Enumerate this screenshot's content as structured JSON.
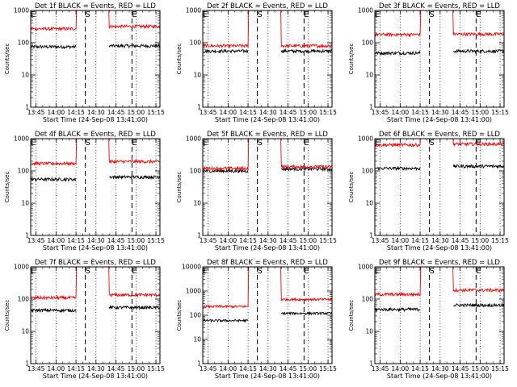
{
  "chart_data": [
    {
      "type": "line",
      "title": "Det 1f BLACK = Events, RED = LLD",
      "xlabel": "Start Time (24-Sep-08 13:41:00)",
      "ylabel": "Counts/sec",
      "xticks": [
        "13:45",
        "14:00",
        "14:15",
        "14:30",
        "14:45",
        "15:00",
        "15:15"
      ],
      "yscale": "log",
      "ylim": [
        1,
        1000
      ],
      "ytick_labels": [
        "1",
        "10",
        "100",
        "1000"
      ],
      "markers": [
        {
          "label": "E",
          "time": "13:41"
        },
        {
          "label": "S",
          "time": "14:22"
        },
        {
          "label": "E",
          "time": "14:57"
        }
      ],
      "series": [
        {
          "color": "#000000",
          "segments": [
            {
              "start": "13:41",
              "end": "14:15",
              "level": 75
            },
            {
              "start": "14:40",
              "end": "15:18",
              "level": 80
            }
          ]
        },
        {
          "color": "#ff0000",
          "segments": [
            {
              "start": "13:41",
              "end": "14:15",
              "level": 270
            },
            {
              "start": "14:40",
              "end": "15:18",
              "level": 320
            }
          ]
        }
      ]
    },
    {
      "type": "line",
      "title": "Det 2f BLACK = Events, RED = LLD",
      "xlabel": "Start Time (24-Sep-08 13:41:00)",
      "ylabel": "Counts/sec",
      "xticks": [
        "13:45",
        "14:00",
        "14:15",
        "14:30",
        "14:45",
        "15:00",
        "15:15"
      ],
      "yscale": "log",
      "ylim": [
        1,
        1000
      ],
      "ytick_labels": [
        "1",
        "10",
        "100",
        "1000"
      ],
      "markers": [
        {
          "label": "E",
          "time": "13:41"
        },
        {
          "label": "S",
          "time": "14:22"
        },
        {
          "label": "E",
          "time": "14:57"
        }
      ],
      "series": [
        {
          "color": "#000000",
          "segments": [
            {
              "start": "13:41",
              "end": "14:15",
              "level": 55
            },
            {
              "start": "14:40",
              "end": "15:18",
              "level": 55
            }
          ]
        },
        {
          "color": "#ff0000",
          "segments": [
            {
              "start": "13:41",
              "end": "14:15",
              "level": 80
            },
            {
              "start": "14:40",
              "end": "15:18",
              "level": 80
            }
          ]
        }
      ]
    },
    {
      "type": "line",
      "title": "Det 3f BLACK = Events, RED = LLD",
      "xlabel": "Start Time (24-Sep-08 13:41:00)",
      "ylabel": "Counts/sec",
      "xticks": [
        "13:45",
        "14:00",
        "14:15",
        "14:30",
        "14:45",
        "15:00",
        "15:15"
      ],
      "yscale": "log",
      "ylim": [
        1,
        1000
      ],
      "ytick_labels": [
        "1",
        "10",
        "100",
        "1000"
      ],
      "markers": [
        {
          "label": "E",
          "time": "13:41"
        },
        {
          "label": "S",
          "time": "14:22"
        },
        {
          "label": "E",
          "time": "14:57"
        }
      ],
      "series": [
        {
          "color": "#000000",
          "segments": [
            {
              "start": "13:41",
              "end": "14:15",
              "level": 48
            },
            {
              "start": "14:40",
              "end": "15:18",
              "level": 55
            }
          ]
        },
        {
          "color": "#ff0000",
          "segments": [
            {
              "start": "13:41",
              "end": "14:15",
              "level": 180
            },
            {
              "start": "14:40",
              "end": "15:18",
              "level": 185
            }
          ]
        }
      ]
    },
    {
      "type": "line",
      "title": "Det 4f BLACK = Events, RED = LLD",
      "xlabel": "Start Time (24-Sep-08 13:41:00)",
      "ylabel": "Counts/sec",
      "xticks": [
        "13:45",
        "14:00",
        "14:15",
        "14:30",
        "14:45",
        "15:00",
        "15:15"
      ],
      "yscale": "log",
      "ylim": [
        1,
        1000
      ],
      "ytick_labels": [
        "1",
        "10",
        "100",
        "1000"
      ],
      "markers": [
        {
          "label": "E",
          "time": "13:41"
        },
        {
          "label": "S",
          "time": "14:22"
        },
        {
          "label": "E",
          "time": "14:57"
        }
      ],
      "series": [
        {
          "color": "#000000",
          "segments": [
            {
              "start": "13:41",
              "end": "14:15",
              "level": 55
            },
            {
              "start": "14:40",
              "end": "15:18",
              "level": 65
            }
          ]
        },
        {
          "color": "#ff0000",
          "segments": [
            {
              "start": "13:41",
              "end": "14:15",
              "level": 170
            },
            {
              "start": "14:40",
              "end": "15:18",
              "level": 195
            }
          ]
        }
      ]
    },
    {
      "type": "line",
      "title": "Det 5f BLACK = Events, RED = LLD",
      "xlabel": "Start Time (24-Sep-08 13:41:00)",
      "ylabel": "Counts/sec",
      "xticks": [
        "13:45",
        "14:00",
        "14:15",
        "14:30",
        "14:45",
        "15:00",
        "15:15"
      ],
      "yscale": "log",
      "ylim": [
        1,
        1000
      ],
      "ytick_labels": [
        "1",
        "10",
        "100",
        "1000"
      ],
      "markers": [
        {
          "label": "E",
          "time": "13:41"
        },
        {
          "label": "S",
          "time": "14:22"
        },
        {
          "label": "E",
          "time": "14:57"
        }
      ],
      "series": [
        {
          "color": "#000000",
          "segments": [
            {
              "start": "13:41",
              "end": "14:15",
              "level": 100
            },
            {
              "start": "14:40",
              "end": "15:18",
              "level": 115
            }
          ]
        },
        {
          "color": "#ff0000",
          "segments": [
            {
              "start": "13:41",
              "end": "14:15",
              "level": 120
            },
            {
              "start": "14:40",
              "end": "15:18",
              "level": 135
            }
          ]
        }
      ]
    },
    {
      "type": "line",
      "title": "Det 6f BLACK = Events, RED = LLD",
      "xlabel": "Start Time (24-Sep-08 13:41:00)",
      "ylabel": "Counts/sec",
      "xticks": [
        "13:45",
        "14:00",
        "14:15",
        "14:30",
        "14:45",
        "15:00",
        "15:15"
      ],
      "yscale": "log",
      "ylim": [
        1,
        1000
      ],
      "ytick_labels": [
        "1",
        "10",
        "100",
        "1000"
      ],
      "markers": [
        {
          "label": "E",
          "time": "13:41"
        },
        {
          "label": "S",
          "time": "14:22"
        },
        {
          "label": "E",
          "time": "14:57"
        }
      ],
      "series": [
        {
          "color": "#000000",
          "segments": [
            {
              "start": "13:41",
              "end": "14:15",
              "level": 120
            },
            {
              "start": "14:40",
              "end": "15:18",
              "level": 140
            }
          ]
        },
        {
          "color": "#ff0000",
          "segments": [
            {
              "start": "13:41",
              "end": "14:15",
              "level": 640
            },
            {
              "start": "14:40",
              "end": "15:18",
              "level": 680
            }
          ]
        }
      ]
    },
    {
      "type": "line",
      "title": "Det 7f BLACK = Events, RED = LLD",
      "xlabel": "Start Time (24-Sep-08 13:41:00)",
      "ylabel": "Counts/sec",
      "xticks": [
        "13:45",
        "14:00",
        "14:15",
        "14:30",
        "14:45",
        "15:00",
        "15:15"
      ],
      "yscale": "log",
      "ylim": [
        1,
        1000
      ],
      "ytick_labels": [
        "1",
        "10",
        "100",
        "1000"
      ],
      "markers": [
        {
          "label": "E",
          "time": "13:41"
        },
        {
          "label": "S",
          "time": "14:22"
        },
        {
          "label": "E",
          "time": "14:57"
        }
      ],
      "series": [
        {
          "color": "#000000",
          "segments": [
            {
              "start": "13:41",
              "end": "14:15",
              "level": 45
            },
            {
              "start": "14:40",
              "end": "15:18",
              "level": 55
            }
          ]
        },
        {
          "color": "#ff0000",
          "segments": [
            {
              "start": "13:41",
              "end": "14:15",
              "level": 110
            },
            {
              "start": "14:40",
              "end": "15:18",
              "level": 135
            }
          ]
        }
      ]
    },
    {
      "type": "line",
      "title": "Det 8f BLACK = Events, RED = LLD",
      "xlabel": "Start Time (24-Sep-08 13:41:00)",
      "ylabel": "Counts/sec",
      "xticks": [
        "13:45",
        "14:00",
        "14:15",
        "14:30",
        "14:45",
        "15:00",
        "15:15"
      ],
      "yscale": "log",
      "ylim": [
        1,
        10000
      ],
      "ytick_labels": [
        "1",
        "10",
        "100",
        "1000",
        "10000"
      ],
      "markers": [
        {
          "label": "E",
          "time": "13:41"
        },
        {
          "label": "S",
          "time": "14:22"
        },
        {
          "label": "E",
          "time": "14:57"
        }
      ],
      "series": [
        {
          "color": "#000000",
          "segments": [
            {
              "start": "13:41",
              "end": "14:15",
              "level": 60
            },
            {
              "start": "14:40",
              "end": "15:18",
              "level": 120
            }
          ]
        },
        {
          "color": "#ff0000",
          "segments": [
            {
              "start": "13:41",
              "end": "14:15",
              "level": 230
            },
            {
              "start": "14:40",
              "end": "15:18",
              "level": 450
            }
          ]
        }
      ]
    },
    {
      "type": "line",
      "title": "Det 9f BLACK = Events, RED = LLD",
      "xlabel": "Start Time (24-Sep-08 13:41:00)",
      "ylabel": "Counts/sec",
      "xticks": [
        "13:45",
        "14:00",
        "14:15",
        "14:30",
        "14:45",
        "15:00",
        "15:15"
      ],
      "yscale": "log",
      "ylim": [
        1,
        1000
      ],
      "ytick_labels": [
        "1",
        "10",
        "100",
        "1000"
      ],
      "markers": [
        {
          "label": "E",
          "time": "13:41"
        },
        {
          "label": "S",
          "time": "14:22"
        },
        {
          "label": "E",
          "time": "14:57"
        }
      ],
      "series": [
        {
          "color": "#000000",
          "segments": [
            {
              "start": "13:41",
              "end": "14:15",
              "level": 48
            },
            {
              "start": "14:40",
              "end": "15:18",
              "level": 65
            }
          ]
        },
        {
          "color": "#ff0000",
          "segments": [
            {
              "start": "13:41",
              "end": "14:15",
              "level": 140
            },
            {
              "start": "14:40",
              "end": "15:18",
              "level": 190
            }
          ]
        }
      ]
    }
  ]
}
